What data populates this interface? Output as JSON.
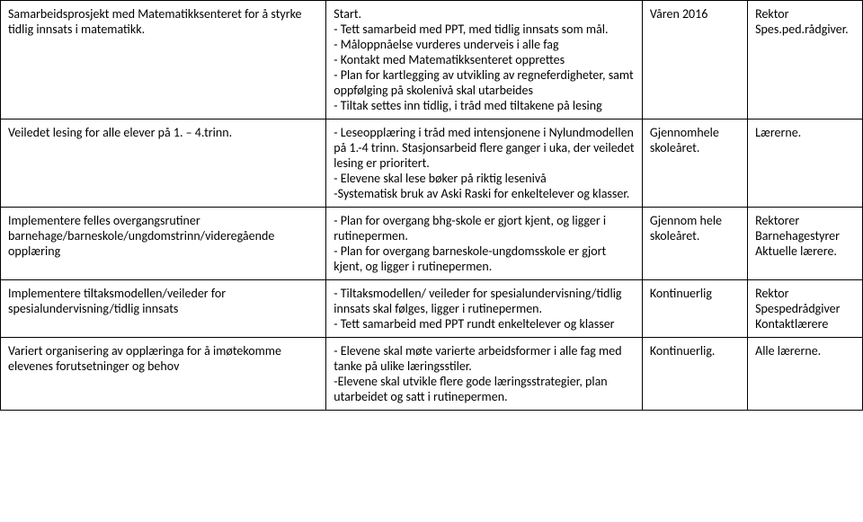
{
  "rows": [
    {
      "c1": "Samarbeidsprosjekt med Matematikksenteret for å styrke tidlig innsats i matematikk.",
      "c2": "Start.\n- Tett samarbeid med PPT, med tidlig innsats som mål.\n- Måloppnåelse vurderes underveis i alle fag\n- Kontakt med Matematikksenteret opprettes\n- Plan for kartlegging av utvikling av regneferdigheter, samt oppfølging på skolenivå skal utarbeides\n- Tiltak settes inn tidlig, i tråd med tiltakene på lesing",
      "c3": "Våren 2016",
      "c4": "Rektor\nSpes.ped.rådgiver."
    },
    {
      "c1": "Veiledet lesing for alle elever på 1. – 4.trinn.",
      "c2": "- Leseopplæring i tråd med intensjonene i Nylundmodellen på 1.-4 trinn. Stasjonsarbeid flere ganger i uka, der veiledet lesing er prioritert.\n- Elevene skal lese bøker på riktig lesenivå\n-Systematisk bruk av Aski Raski for enkeltelever og klasser.",
      "c3": "Gjennomhele skoleåret.",
      "c4": "Lærerne."
    },
    {
      "c1": "Implementere felles overgangsrutiner barnehage/barneskole/ungdomstrinn/videregående opplæring",
      "c2": "- Plan for overgang bhg-skole er gjort kjent, og ligger i rutinepermen.\n- Plan for overgang barneskole-ungdomsskole er gjort kjent, og ligger i rutinepermen.",
      "c3": "Gjennom hele skoleåret.",
      "c4": "Rektorer\nBarnehagestyrer\nAktuelle lærere."
    },
    {
      "c1": "Implementere tiltaksmodellen/veileder for spesialundervisning/tidlig innsats",
      "c2": "- Tiltaksmodellen/ veileder for spesialundervisning/tidlig innsats skal følges, ligger i rutinepermen.\n- Tett samarbeid med PPT rundt enkeltelever og klasser",
      "c3": "Kontinuerlig",
      "c4": "Rektor\nSpespedrådgiver\nKontaktlærere"
    },
    {
      "c1": "Variert organisering av opplæringa for å imøtekomme elevenes forutsetninger og behov",
      "c2": "- Elevene skal møte varierte arbeidsformer i alle fag med tanke på ulike læringsstiler.\n-Elevene skal utvikle flere gode læringsstrategier, plan utarbeidet og satt i rutinepermen.",
      "c3": "Kontinuerlig.",
      "c4": "Alle lærerne."
    }
  ]
}
